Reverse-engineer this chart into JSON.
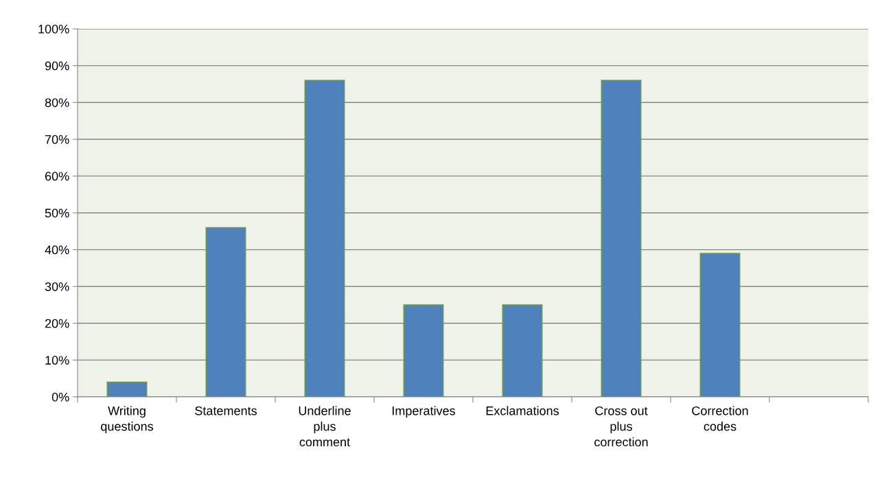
{
  "chart_data": {
    "type": "bar",
    "categories": [
      "Writing\nquestions",
      "Statements",
      "Underline\nplus\ncomment",
      "Imperatives",
      "Exclamations",
      "Cross out\nplus\ncorrection",
      "Correction\ncodes",
      null
    ],
    "values": [
      4,
      46,
      86,
      25,
      25,
      86,
      39,
      null
    ],
    "color": "#4f81bd",
    "ylim": [
      0,
      100
    ],
    "yticks": [
      {
        "value": 0,
        "label": "0%"
      },
      {
        "value": 10,
        "label": "10%"
      },
      {
        "value": 20,
        "label": "20%"
      },
      {
        "value": 30,
        "label": "30%"
      },
      {
        "value": 40,
        "label": "40%"
      },
      {
        "value": 50,
        "label": "50%"
      },
      {
        "value": 60,
        "label": "60%"
      },
      {
        "value": 70,
        "label": "70%"
      },
      {
        "value": 80,
        "label": "80%"
      },
      {
        "value": 90,
        "label": "90%"
      },
      {
        "value": 100,
        "label": "100%"
      }
    ],
    "grid": "y"
  }
}
